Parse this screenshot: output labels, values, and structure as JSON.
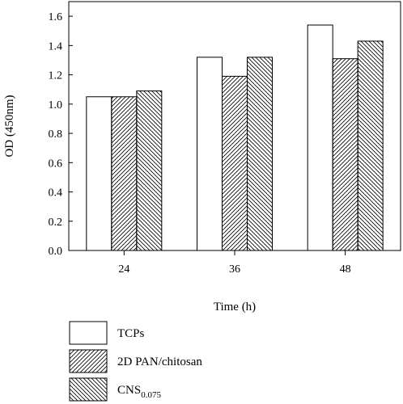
{
  "chart_data": {
    "type": "bar",
    "categories": [
      "24",
      "36",
      "48"
    ],
    "series": [
      {
        "name": "TCPs",
        "values": [
          1.05,
          1.32,
          1.54
        ],
        "pattern": "none"
      },
      {
        "name": "2D PAN/chitosan",
        "values": [
          1.05,
          1.19,
          1.31
        ],
        "pattern": "hatch-right"
      },
      {
        "name": "CNS",
        "name_sub": "0.075",
        "values": [
          1.09,
          1.32,
          1.43
        ],
        "pattern": "hatch-left"
      }
    ],
    "xlabel": "Time (h)",
    "ylabel": "OD (450nm)",
    "ylim": [
      0,
      1.7
    ],
    "yticks": [
      "0.0",
      "0.2",
      "0.4",
      "0.6",
      "0.8",
      "1.0",
      "1.2",
      "1.4",
      "1.6"
    ],
    "grid": false,
    "legend_position": "bottom-left-below-axes"
  }
}
